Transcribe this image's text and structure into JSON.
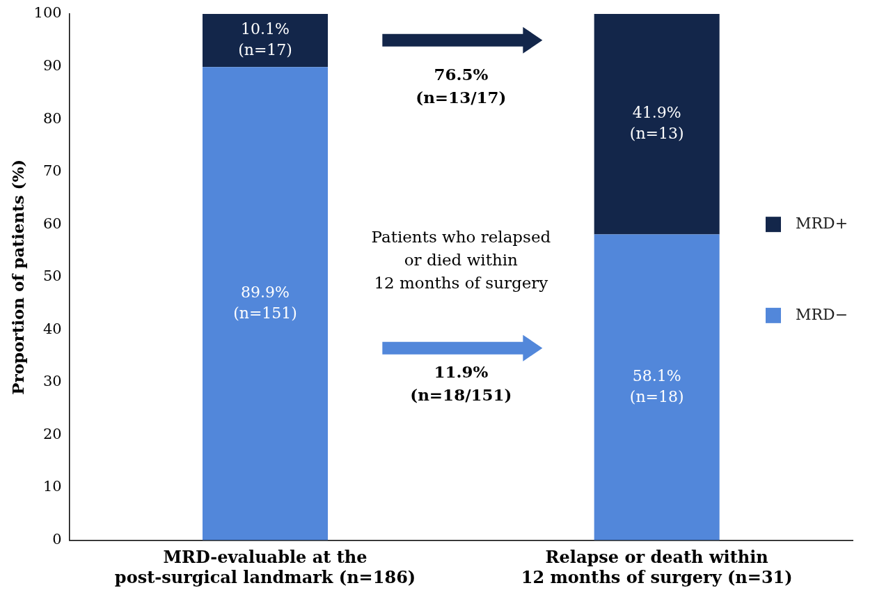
{
  "chart_data": {
    "type": "bar",
    "stacked": true,
    "ylabel": "Proportion of patients (%)",
    "categories": [
      "MRD-evaluable at the\npost-surgical landmark (n=186)",
      "Relapse or death within\n12 months of surgery (n=31)"
    ],
    "series": [
      {
        "name": "MRD−",
        "color": "#5287da",
        "values": [
          89.9,
          58.1
        ],
        "value_labels": [
          "89.9%\n(n=151)",
          "58.1%\n(n=18)"
        ]
      },
      {
        "name": "MRD+",
        "color": "#13264a",
        "values": [
          10.1,
          41.9
        ],
        "value_labels": [
          "10.1%\n(n=17)",
          "41.9%\n(n=13)"
        ]
      }
    ],
    "ylim": [
      0,
      100
    ],
    "yticks": [
      0,
      10,
      20,
      30,
      40,
      50,
      60,
      70,
      80,
      90,
      100
    ],
    "grid": false,
    "legend": "right",
    "annotations": [
      "76.5%\n(n=13/17)",
      "Patients who relapsed\nor died within\n12 months of surgery",
      "11.9%\n(n=18/151)"
    ]
  }
}
